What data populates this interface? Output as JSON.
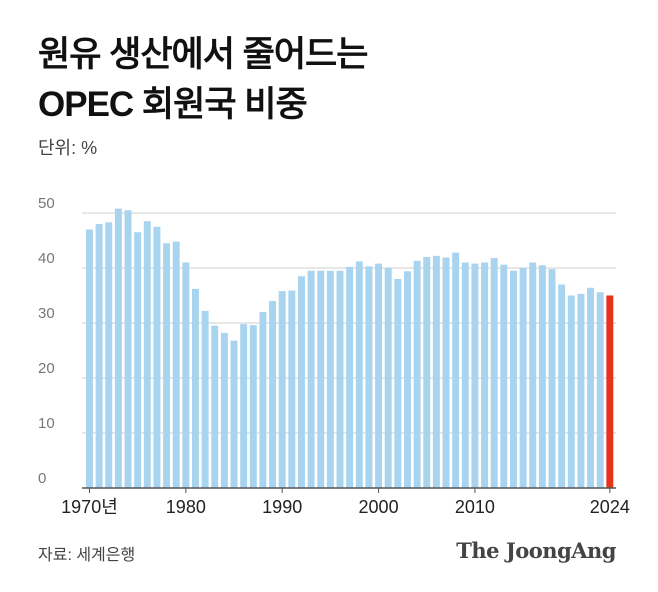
{
  "title_line1": "원유 생산에서 줄어드는",
  "title_line2": "OPEC 회원국 비중",
  "unit": "단위: %",
  "source": "자료: 세계은행",
  "brand": "The JoongAng",
  "colors": {
    "bar": "#a8d4ef",
    "highlight": "#e8321e",
    "grid": "#cfcfcf",
    "axis": "#555555"
  },
  "chart_data": {
    "type": "bar",
    "title": "원유 생산에서 줄어드는 OPEC 회원국 비중",
    "ylabel": "단위: %",
    "ylim": [
      0,
      50
    ],
    "yticks": [
      0,
      10,
      20,
      30,
      40,
      50
    ],
    "grid": true,
    "x": [
      1970,
      1971,
      1972,
      1973,
      1974,
      1975,
      1976,
      1977,
      1978,
      1979,
      1980,
      1981,
      1982,
      1983,
      1984,
      1985,
      1986,
      1987,
      1988,
      1989,
      1990,
      1991,
      1992,
      1993,
      1994,
      1995,
      1996,
      1997,
      1998,
      1999,
      2000,
      2001,
      2002,
      2003,
      2004,
      2005,
      2006,
      2007,
      2008,
      2009,
      2010,
      2011,
      2012,
      2013,
      2014,
      2015,
      2016,
      2017,
      2018,
      2019,
      2020,
      2021,
      2022,
      2023,
      2024
    ],
    "values": [
      47.0,
      48.0,
      48.3,
      50.8,
      50.5,
      46.5,
      48.5,
      47.5,
      44.5,
      44.8,
      41.0,
      36.2,
      32.2,
      29.5,
      28.2,
      26.8,
      29.8,
      29.6,
      32.0,
      34.0,
      35.8,
      35.9,
      38.5,
      39.5,
      39.5,
      39.5,
      39.5,
      40.2,
      41.2,
      40.3,
      40.8,
      40.1,
      38.0,
      39.4,
      41.3,
      42.0,
      42.2,
      41.9,
      42.8,
      41.0,
      40.8,
      41.0,
      41.8,
      40.6,
      39.5,
      40.0,
      41.0,
      40.5,
      39.8,
      37.0,
      35.0,
      35.3,
      36.4,
      35.6,
      35.0
    ],
    "highlight_x": 2024,
    "xtick_labels": [
      {
        "x": 1970,
        "label": "1970년"
      },
      {
        "x": 1980,
        "label": "1980"
      },
      {
        "x": 1990,
        "label": "1990"
      },
      {
        "x": 2000,
        "label": "2000"
      },
      {
        "x": 2010,
        "label": "2010"
      },
      {
        "x": 2024,
        "label": "2024"
      }
    ]
  }
}
